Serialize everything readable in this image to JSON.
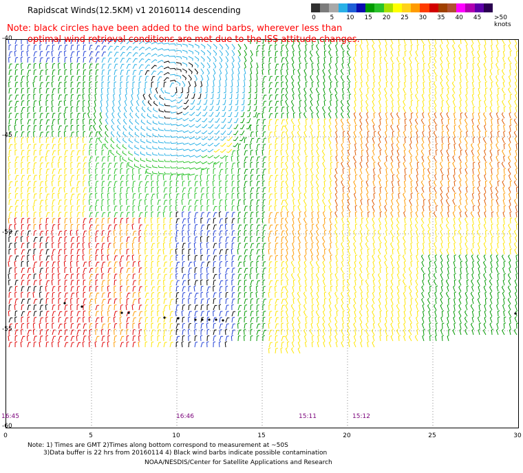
{
  "title": "Rapidscat Winds(12.5KM)  v1  20160114  descending",
  "note_line1": "Note: black circles have been added to the wind barbs, wherever less than",
  "note_line2": "optimal wind retrieval conditions are met due to the ISS attitude changes.",
  "scale": {
    "labels": [
      "0",
      "5",
      "10",
      "15",
      "20",
      "25",
      "30",
      "35",
      "40",
      "45",
      ">50 knots"
    ],
    "colors": [
      "#303030",
      "#7c7c7c",
      "#a8a8a8",
      "#29b0e6",
      "#1f5fd6",
      "#0b0bb0",
      "#009a00",
      "#29c229",
      "#a8e000",
      "#ffff00",
      "#ffd21a",
      "#ff9b00",
      "#ff3b00",
      "#d20000",
      "#a04000",
      "#b05030",
      "#ff00ff",
      "#b000b0",
      "#5c00a8",
      "#2a0050"
    ]
  },
  "lat_labels": [
    "-40",
    "-45",
    "-50",
    "-55",
    "-60"
  ],
  "lon_labels": [
    "0",
    "5",
    "10",
    "15",
    "20",
    "25",
    "30"
  ],
  "time_labels": [
    "16:45",
    "16:46",
    "15:11",
    "15:12"
  ],
  "footnote1": "Note: 1) Times are GMT 2)Times along bottom correspond to measurement at ~50S",
  "footnote2": "3)Data buffer is 22 hrs from 20160114 4) Black wind barbs indicate possible contamination",
  "credit": "NOAA/NESDIS/Center for Satellite Applications and Research",
  "map": {
    "lat_range": [
      -60,
      -40
    ],
    "lon_range": [
      0,
      30
    ],
    "barb_colors": {
      "black": "#000000",
      "light_blue": "#29b0e6",
      "blue": "#1f3fd6",
      "dark_green": "#009a00",
      "green": "#29c229",
      "yellow": "#ffe600",
      "orange": "#ff9b00",
      "dark_orange": "#e05a00",
      "red": "#e00000"
    }
  }
}
